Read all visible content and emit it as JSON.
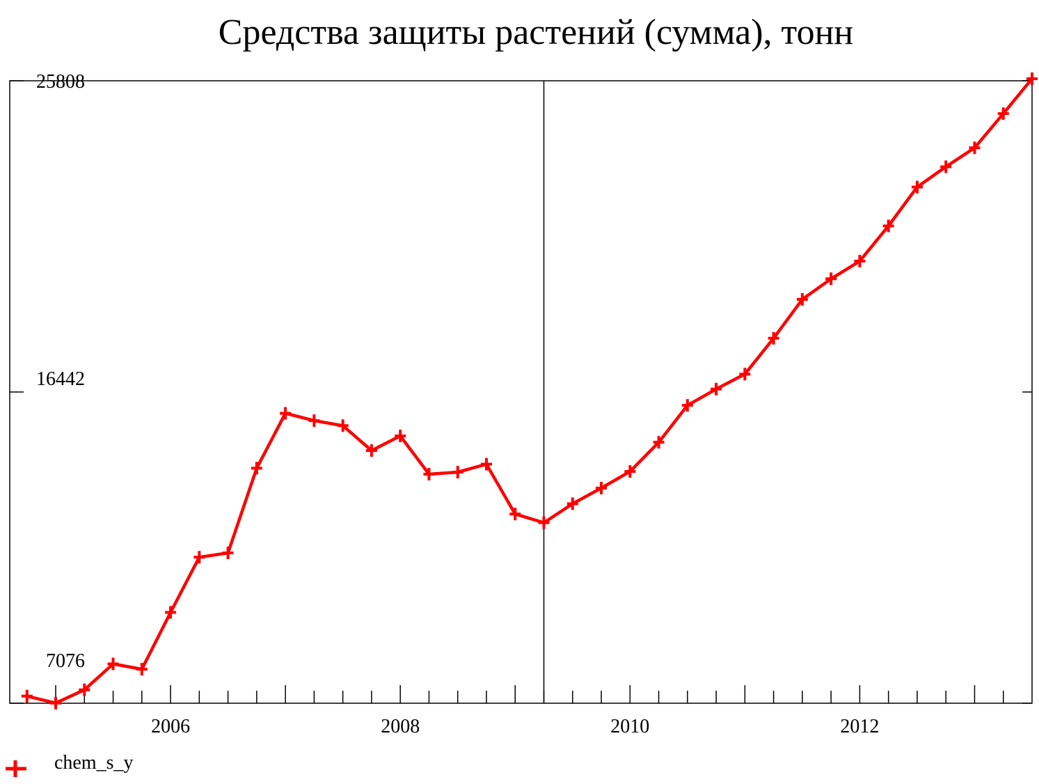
{
  "chart_data": {
    "type": "line",
    "title": "Средства защиты растений (сумма), тонн",
    "xlabel": "",
    "ylabel": "",
    "x_range": [
      2004.6,
      2013.5
    ],
    "ylim": [
      7076,
      25808
    ],
    "y_ticks": [
      {
        "value": 25808,
        "label": "25808"
      },
      {
        "value": 16442,
        "label": "16442"
      },
      {
        "value": 7076,
        "label": "7076"
      }
    ],
    "x_ticks": [
      {
        "value": 2006,
        "label": "2006"
      },
      {
        "value": 2008,
        "label": "2008"
      },
      {
        "value": 2010,
        "label": "2010"
      },
      {
        "value": 2012,
        "label": "2012"
      }
    ],
    "divider_x": 2009.25,
    "legend": {
      "position": "bottom-left"
    },
    "series": [
      {
        "name": "chem_s_y",
        "color": "#ff0000",
        "marker": "plus",
        "points": [
          [
            2004.75,
            7290
          ],
          [
            2005.0,
            7080
          ],
          [
            2005.25,
            7480
          ],
          [
            2005.5,
            8260
          ],
          [
            2005.75,
            8100
          ],
          [
            2006.0,
            9810
          ],
          [
            2006.25,
            11470
          ],
          [
            2006.5,
            11600
          ],
          [
            2006.75,
            14150
          ],
          [
            2007.0,
            15800
          ],
          [
            2007.25,
            15580
          ],
          [
            2007.5,
            15430
          ],
          [
            2007.75,
            14680
          ],
          [
            2008.0,
            15120
          ],
          [
            2008.25,
            13970
          ],
          [
            2008.5,
            14030
          ],
          [
            2008.75,
            14270
          ],
          [
            2009.0,
            12770
          ],
          [
            2009.25,
            12510
          ],
          [
            2009.5,
            13080
          ],
          [
            2009.75,
            13550
          ],
          [
            2010.0,
            14050
          ],
          [
            2010.25,
            14930
          ],
          [
            2010.5,
            16040
          ],
          [
            2010.75,
            16530
          ],
          [
            2011.0,
            16980
          ],
          [
            2011.25,
            18060
          ],
          [
            2011.5,
            19230
          ],
          [
            2011.75,
            19850
          ],
          [
            2012.0,
            20380
          ],
          [
            2012.25,
            21440
          ],
          [
            2012.5,
            22610
          ],
          [
            2012.75,
            23220
          ],
          [
            2013.0,
            23790
          ],
          [
            2013.25,
            24820
          ],
          [
            2013.5,
            25870
          ]
        ]
      }
    ]
  }
}
